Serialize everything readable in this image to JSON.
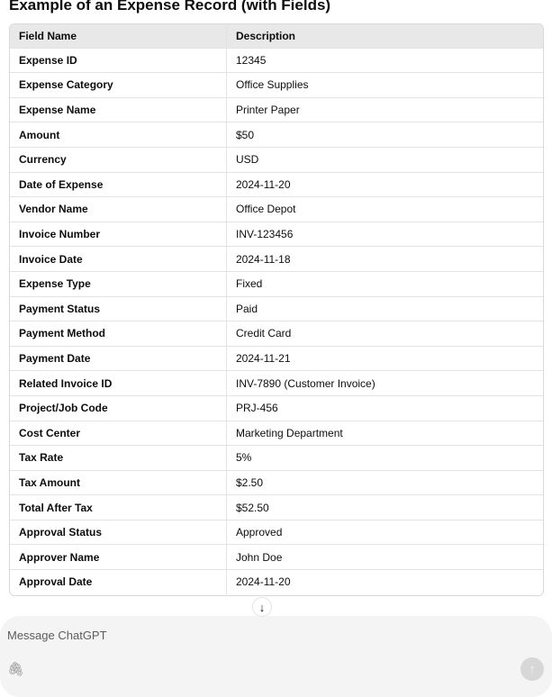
{
  "title": "Example of an Expense Record (with Fields)",
  "table": {
    "headers": [
      "Field Name",
      "Description"
    ],
    "rows": [
      [
        "Expense ID",
        "12345"
      ],
      [
        "Expense Category",
        "Office Supplies"
      ],
      [
        "Expense Name",
        "Printer Paper"
      ],
      [
        "Amount",
        "$50"
      ],
      [
        "Currency",
        "USD"
      ],
      [
        "Date of Expense",
        "2024-11-20"
      ],
      [
        "Vendor Name",
        "Office Depot"
      ],
      [
        "Invoice Number",
        "INV-123456"
      ],
      [
        "Invoice Date",
        "2024-11-18"
      ],
      [
        "Expense Type",
        "Fixed"
      ],
      [
        "Payment Status",
        "Paid"
      ],
      [
        "Payment Method",
        "Credit Card"
      ],
      [
        "Payment Date",
        "2024-11-21"
      ],
      [
        "Related Invoice ID",
        "INV-7890 (Customer Invoice)"
      ],
      [
        "Project/Job Code",
        "PRJ-456"
      ],
      [
        "Cost Center",
        "Marketing Department"
      ],
      [
        "Tax Rate",
        "5%"
      ],
      [
        "Tax Amount",
        "$2.50"
      ],
      [
        "Total After Tax",
        "$52.50"
      ],
      [
        "Approval Status",
        "Approved"
      ],
      [
        "Approver Name",
        "John Doe"
      ],
      [
        "Approval Date",
        "2024-11-20"
      ]
    ]
  },
  "composer": {
    "placeholder": "Message ChatGPT",
    "attach_icon": "paperclip-icon",
    "send_icon": "arrow-up-icon"
  },
  "scroll_button_icon": "arrow-down-icon"
}
